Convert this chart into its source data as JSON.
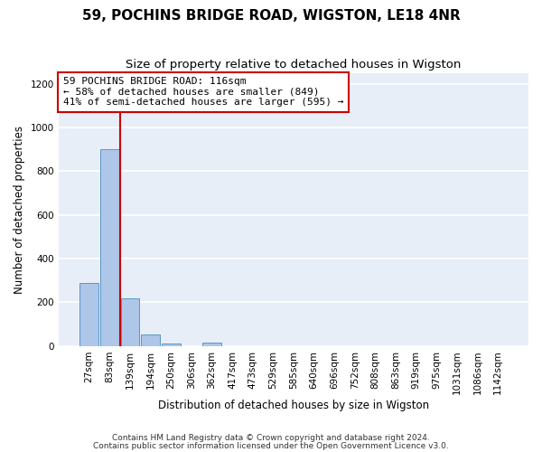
{
  "title": "59, POCHINS BRIDGE ROAD, WIGSTON, LE18 4NR",
  "subtitle": "Size of property relative to detached houses in Wigston",
  "xlabel": "Distribution of detached houses by size in Wigston",
  "ylabel": "Number of detached properties",
  "bar_labels": [
    "27sqm",
    "83sqm",
    "139sqm",
    "194sqm",
    "250sqm",
    "306sqm",
    "362sqm",
    "417sqm",
    "473sqm",
    "529sqm",
    "585sqm",
    "640sqm",
    "696sqm",
    "752sqm",
    "808sqm",
    "863sqm",
    "919sqm",
    "975sqm",
    "1031sqm",
    "1086sqm",
    "1142sqm"
  ],
  "bar_values": [
    290,
    900,
    220,
    55,
    10,
    0,
    15,
    0,
    0,
    0,
    0,
    0,
    0,
    0,
    0,
    0,
    0,
    0,
    0,
    0,
    0
  ],
  "bar_color": "#aec6e8",
  "bar_edge_color": "#5a96c8",
  "vline_x": 1.5,
  "vline_color": "#cc0000",
  "ylim": [
    0,
    1250
  ],
  "yticks": [
    0,
    200,
    400,
    600,
    800,
    1000,
    1200
  ],
  "annotation_text": "59 POCHINS BRIDGE ROAD: 116sqm\n← 58% of detached houses are smaller (849)\n41% of semi-detached houses are larger (595) →",
  "annotation_box_color": "#ffffff",
  "annotation_box_edge": "#cc0000",
  "footer1": "Contains HM Land Registry data © Crown copyright and database right 2024.",
  "footer2": "Contains public sector information licensed under the Open Government Licence v3.0.",
  "background_color": "#e8eef8",
  "fig_background_color": "#ffffff",
  "grid_color": "#ffffff",
  "title_fontsize": 11,
  "subtitle_fontsize": 9.5,
  "axis_label_fontsize": 8.5,
  "tick_fontsize": 7.5,
  "annotation_fontsize": 8,
  "footer_fontsize": 6.5
}
